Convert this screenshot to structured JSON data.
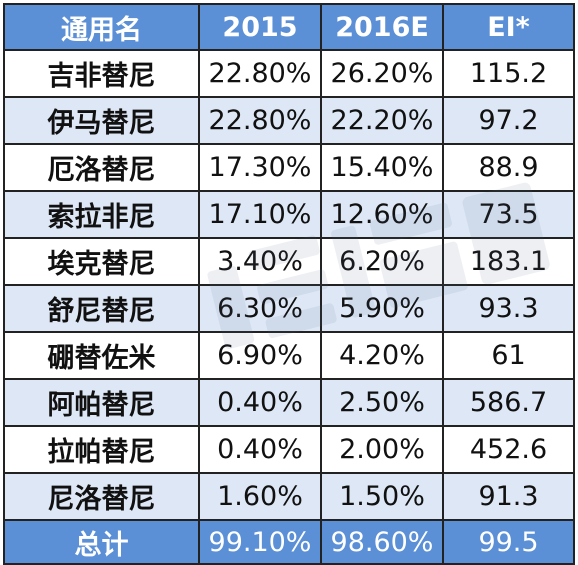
{
  "table": {
    "headers": [
      "通用名",
      "2015",
      "2016E",
      "EI*"
    ],
    "rows": [
      {
        "name": "吉非替尼",
        "y2015": "22.80%",
        "y2016": "26.20%",
        "ei": "115.2"
      },
      {
        "name": "伊马替尼",
        "y2015": "22.80%",
        "y2016": "22.20%",
        "ei": "97.2"
      },
      {
        "name": "厄洛替尼",
        "y2015": "17.30%",
        "y2016": "15.40%",
        "ei": "88.9"
      },
      {
        "name": "索拉非尼",
        "y2015": "17.10%",
        "y2016": "12.60%",
        "ei": "73.5"
      },
      {
        "name": "埃克替尼",
        "y2015": "3.40%",
        "y2016": "6.20%",
        "ei": "183.1"
      },
      {
        "name": "舒尼替尼",
        "y2015": "6.30%",
        "y2016": "5.90%",
        "ei": "93.3"
      },
      {
        "name": "硼替佐米",
        "y2015": "6.90%",
        "y2016": "4.20%",
        "ei": "61"
      },
      {
        "name": "阿帕替尼",
        "y2015": "0.40%",
        "y2016": "2.50%",
        "ei": "586.7"
      },
      {
        "name": "拉帕替尼",
        "y2015": "0.40%",
        "y2016": "2.00%",
        "ei": "452.6"
      },
      {
        "name": "尼洛替尼",
        "y2015": "1.60%",
        "y2016": "1.50%",
        "ei": "91.3"
      }
    ],
    "total": {
      "name": "总计",
      "y2015": "99.10%",
      "y2016": "98.60%",
      "ei": "99.5"
    }
  },
  "colors": {
    "header_bg": "#5b8fd6",
    "stripe_bg": "#dde7f5",
    "border": "#222222"
  }
}
